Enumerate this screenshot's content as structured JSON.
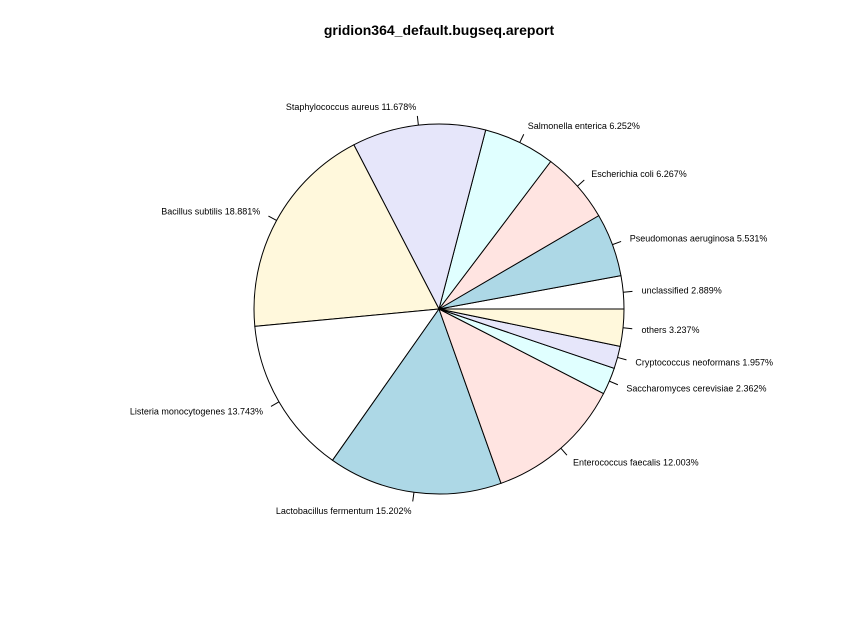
{
  "chart_data": {
    "type": "pie",
    "title": "gridion364_default.bugseq.areport",
    "start_angle_deg": 0,
    "direction": "counterclockwise",
    "slices": [
      {
        "label": "unclassified 2.889%",
        "value": 2.889,
        "color": "#ffffff"
      },
      {
        "label": "Pseudomonas aeruginosa 5.531%",
        "value": 5.531,
        "color": "#add8e6"
      },
      {
        "label": "Escherichia coli 6.267%",
        "value": 6.267,
        "color": "#ffe4e1"
      },
      {
        "label": "Salmonella enterica 6.252%",
        "value": 6.252,
        "color": "#e0ffff"
      },
      {
        "label": "Staphylococcus aureus 11.678%",
        "value": 11.678,
        "color": "#e6e6fa"
      },
      {
        "label": "Bacillus subtilis 18.881%",
        "value": 18.881,
        "color": "#fff8dc"
      },
      {
        "label": "Listeria monocytogenes 13.743%",
        "value": 13.743,
        "color": "#ffffff"
      },
      {
        "label": "Lactobacillus fermentum 15.202%",
        "value": 15.202,
        "color": "#add8e6"
      },
      {
        "label": "Enterococcus faecalis 12.003%",
        "value": 12.003,
        "color": "#ffe4e1"
      },
      {
        "label": "Saccharomyces cerevisiae 2.362%",
        "value": 2.362,
        "color": "#e0ffff"
      },
      {
        "label": "Cryptococcus neoformans 1.957%",
        "value": 1.957,
        "color": "#e6e6fa"
      },
      {
        "label": "others 3.237%",
        "value": 3.237,
        "color": "#fff8dc"
      }
    ]
  }
}
